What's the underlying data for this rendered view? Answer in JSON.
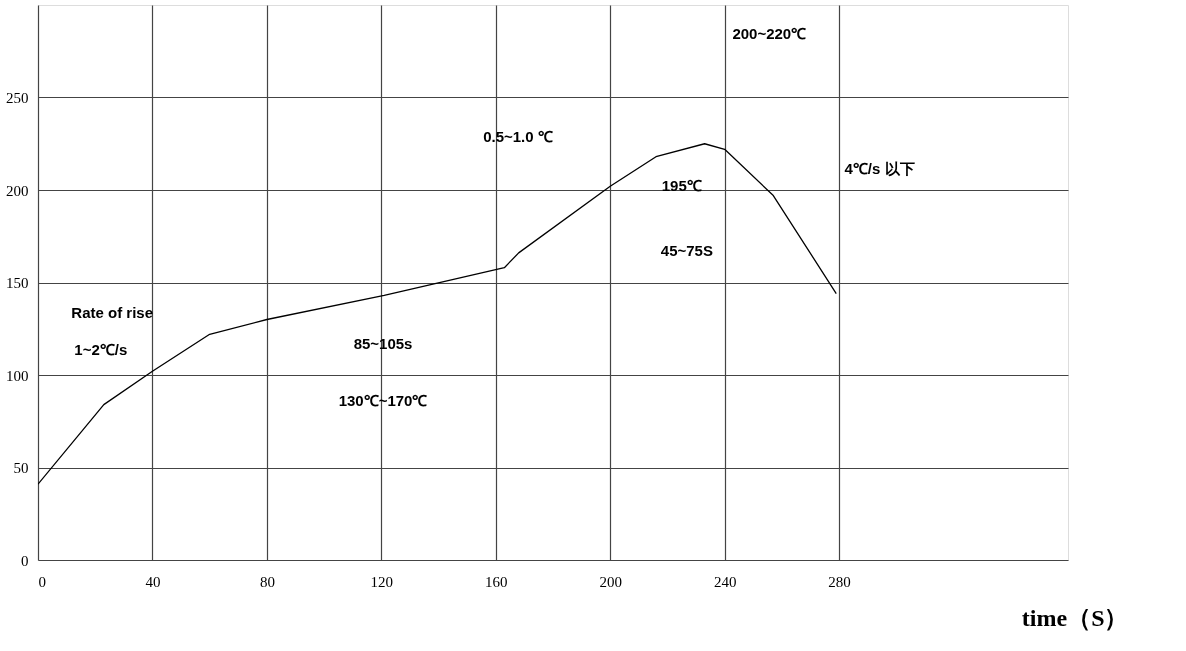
{
  "chart_data": {
    "type": "line",
    "xlabel": "time（S）",
    "x": [
      0,
      23,
      40,
      60,
      80,
      121,
      163,
      168,
      200,
      216,
      233,
      240,
      257,
      279
    ],
    "series": [
      {
        "color": "#000000",
        "values": [
          41,
          84,
          102,
          122,
          130,
          143,
          158,
          166,
          202,
          218,
          225,
          222,
          197,
          144
        ]
      }
    ],
    "xlim": [
      0,
      360
    ],
    "xticks": [
      0,
      40,
      80,
      120,
      160,
      200,
      240,
      280
    ],
    "ylim": [
      0,
      300
    ],
    "yticks": [
      0,
      50,
      100,
      150,
      200,
      250
    ],
    "grid": true,
    "marker": "none",
    "line_style": "solid",
    "annotations": [
      "Rate of rise",
      "1~2℃/s",
      "85~105s",
      "130℃~170℃",
      "0.5~1.0 ℃",
      "200~220℃",
      "195℃",
      "45~75S",
      "4℃/s 以下"
    ]
  }
}
